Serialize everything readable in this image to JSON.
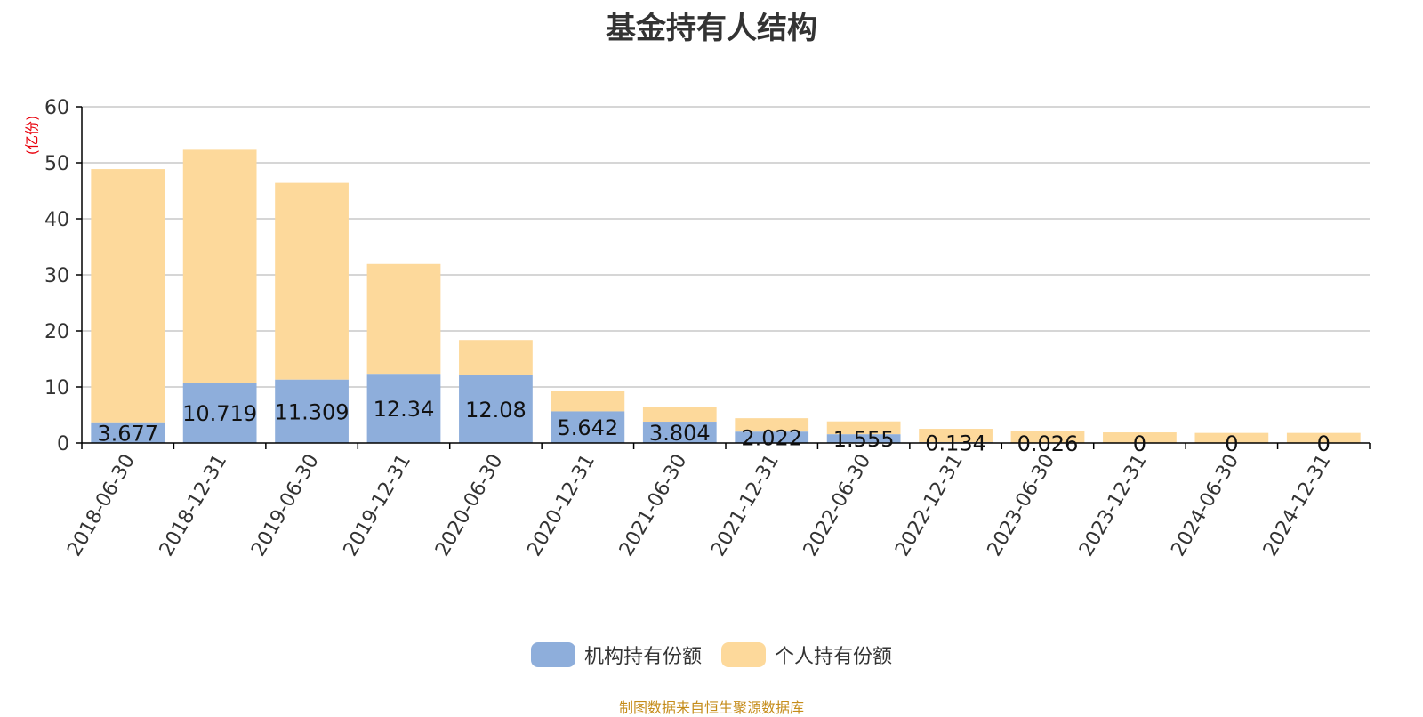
{
  "title": "基金持有人结构",
  "unit_label": "(亿份)",
  "source": "制图数据来自恒生聚源数据库",
  "colors": {
    "institutional": "#8eaedb",
    "individual": "#fdd99b",
    "axis": "#000000",
    "grid": "#c8c8c8",
    "unit": "#e8000b"
  },
  "chart_data": {
    "type": "bar",
    "stacked": true,
    "title": "基金持有人结构",
    "ylabel": "(亿份)",
    "ylim": [
      0,
      60
    ],
    "yticks": [
      0,
      10,
      20,
      30,
      40,
      50,
      60
    ],
    "grid": true,
    "legend_position": "bottom",
    "categories": [
      "2018-06-30",
      "2018-12-31",
      "2019-06-30",
      "2019-12-31",
      "2020-06-30",
      "2020-12-31",
      "2021-06-30",
      "2021-12-31",
      "2022-06-30",
      "2022-12-31",
      "2023-06-30",
      "2023-12-31",
      "2024-06-30",
      "2024-12-31"
    ],
    "series": [
      {
        "name": "机构持有份额",
        "values": [
          3.677,
          10.719,
          11.309,
          12.34,
          12.08,
          5.642,
          3.804,
          2.022,
          1.555,
          0.134,
          0.026,
          0,
          0,
          0
        ],
        "labels": [
          "3.677",
          "10.719",
          "11.309",
          "12.34",
          "12.08",
          "5.642",
          "3.804",
          "2.022",
          "1.555",
          "0.134",
          "0.026",
          "0",
          "0",
          "0"
        ]
      },
      {
        "name": "个人持有份额",
        "values": [
          45.2,
          41.6,
          35.1,
          19.6,
          6.3,
          3.6,
          2.6,
          2.4,
          2.3,
          2.4,
          2.1,
          1.9,
          1.8,
          1.8
        ]
      }
    ]
  }
}
